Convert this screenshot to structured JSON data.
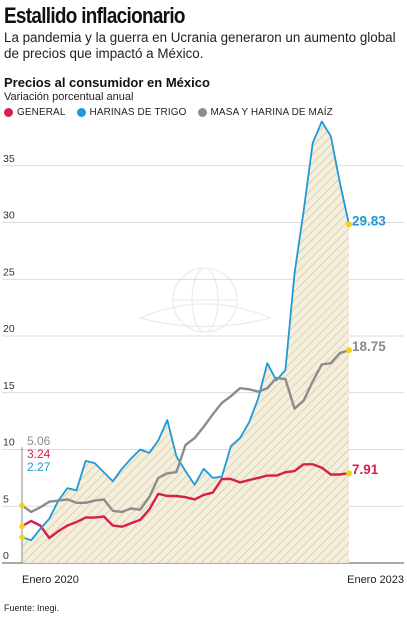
{
  "headline": "Estallido inflacionario",
  "dek": "La pandemia y la guerra en Ucrania generaron un aumento global de precios que impactó a México.",
  "source": "Fuente: Inegi.",
  "colors": {
    "general": "#d81f4a",
    "harinas": "#1e9ad6",
    "masa": "#8c8c8c",
    "endpoint": "#f2d21a",
    "hatch": "#d2c29a",
    "fill": "#f4eedd"
  },
  "chart_data": {
    "type": "line",
    "title": "Precios al consumidor en México",
    "subtitle": "Variación porcentual anual",
    "ylim": [
      0,
      40
    ],
    "yticks": [
      0,
      5,
      10,
      15,
      20,
      25,
      30,
      35
    ],
    "ytick_labels": [
      "0",
      "5",
      "10",
      "15",
      "20",
      "25",
      "30",
      "35"
    ],
    "x_labels": [
      "Enero 2020",
      "Enero 2023"
    ],
    "grid": true,
    "legend": "top-left",
    "start_values": [
      "5.06",
      "3.24",
      "2.27"
    ],
    "end_values": [
      "29.83",
      "18.75",
      "7.91"
    ],
    "series": [
      {
        "name": "GENERAL",
        "color_key": "general",
        "values": [
          3.24,
          3.7,
          3.3,
          2.2,
          2.8,
          3.3,
          3.6,
          4.0,
          4.0,
          4.1,
          3.3,
          3.2,
          3.5,
          3.8,
          4.7,
          6.1,
          5.9,
          5.9,
          5.8,
          5.6,
          6.0,
          6.2,
          7.4,
          7.4,
          7.1,
          7.3,
          7.5,
          7.7,
          7.7,
          8.0,
          8.1,
          8.7,
          8.7,
          8.4,
          7.8,
          7.8,
          7.91
        ]
      },
      {
        "name": "HARINAS DE TRIGO",
        "color_key": "harinas",
        "values": [
          2.27,
          2.0,
          3.0,
          3.9,
          5.5,
          6.6,
          6.4,
          9.0,
          8.8,
          8.0,
          7.2,
          8.3,
          9.2,
          10.0,
          9.7,
          10.8,
          12.6,
          9.4,
          8.1,
          6.9,
          8.3,
          7.5,
          7.6,
          10.3,
          11.0,
          12.4,
          14.5,
          17.6,
          16.1,
          17.0,
          25.5,
          31.0,
          37.0,
          38.9,
          37.6,
          33.5,
          29.83
        ]
      },
      {
        "name": "MASA Y HARINA DE MAÍZ",
        "color_key": "masa",
        "values": [
          5.06,
          4.5,
          4.9,
          5.4,
          5.5,
          5.6,
          5.3,
          5.3,
          5.5,
          5.6,
          4.6,
          4.5,
          4.8,
          4.7,
          5.8,
          7.5,
          7.9,
          8.0,
          10.4,
          11.0,
          12.0,
          13.1,
          14.1,
          14.7,
          15.4,
          15.3,
          15.1,
          15.4,
          16.3,
          16.2,
          13.6,
          14.3,
          16.0,
          17.5,
          17.6,
          18.5,
          18.75
        ]
      }
    ]
  }
}
